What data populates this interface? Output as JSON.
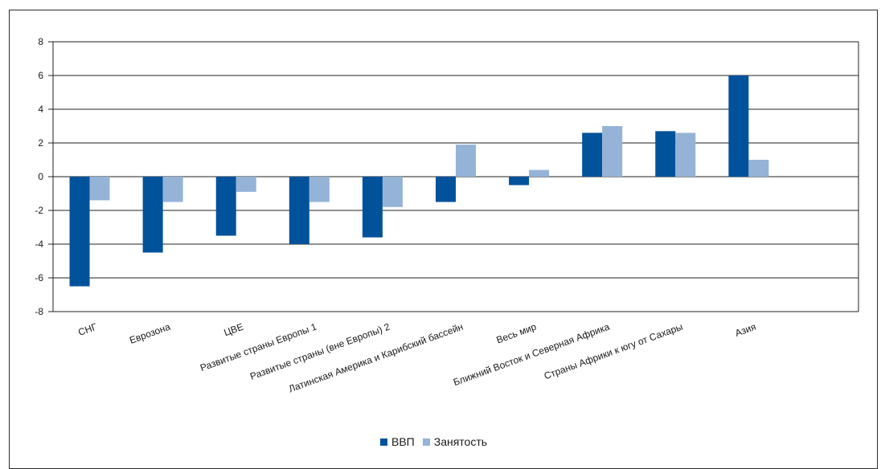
{
  "chart_data": {
    "type": "bar",
    "title": "",
    "xlabel": "",
    "ylabel": "",
    "ylim": [
      -8,
      8
    ],
    "yticks": [
      8,
      6,
      4,
      2,
      0,
      -2,
      -4,
      -6,
      -8
    ],
    "grid": true,
    "legend_position": "bottom",
    "categories": [
      "СНГ",
      "Еврозона",
      "ЦВЕ",
      "Развитые страны Европы 1",
      "Развитые страны (вне Европы) 2",
      "Латинская Америка и Карибский бассейн",
      "Весь мир",
      "Ближний Восток и Северная Африка",
      "Страны Африки к югу от Сахары",
      "Азия"
    ],
    "series": [
      {
        "name": "ВВП",
        "color": "#00529b",
        "values": [
          -6.5,
          -4.5,
          -3.5,
          -4.0,
          -3.6,
          -1.5,
          -0.5,
          2.6,
          2.7,
          6.0
        ]
      },
      {
        "name": "Занятость",
        "color": "#95b3d7",
        "values": [
          -1.4,
          -1.5,
          -0.9,
          -1.5,
          -1.8,
          1.9,
          0.4,
          3.0,
          2.6,
          1.0
        ]
      }
    ]
  }
}
